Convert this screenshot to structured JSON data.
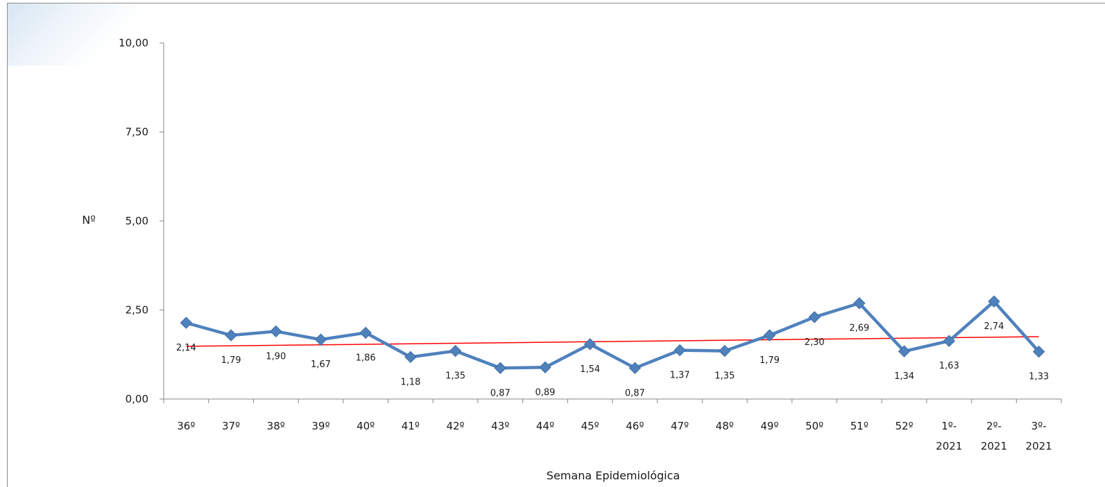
{
  "chart_data": {
    "type": "line",
    "title": "",
    "xlabel": "Semana Epidemiológica",
    "ylabel": "Nº",
    "ylim": [
      0,
      10
    ],
    "y_ticks": [
      "0,00",
      "2,50",
      "5,00",
      "7,50",
      "10,00"
    ],
    "y_tick_values": [
      0,
      2.5,
      5,
      7.5,
      10
    ],
    "grid": false,
    "categories": [
      [
        "36º"
      ],
      [
        "37º"
      ],
      [
        "38º"
      ],
      [
        "39º"
      ],
      [
        "40º"
      ],
      [
        "41º"
      ],
      [
        "42º"
      ],
      [
        "43º"
      ],
      [
        "44º"
      ],
      [
        "45º"
      ],
      [
        "46º"
      ],
      [
        "47º"
      ],
      [
        "48º"
      ],
      [
        "49º"
      ],
      [
        "50º"
      ],
      [
        "51º"
      ],
      [
        "52º"
      ],
      [
        "1º-",
        "2021"
      ],
      [
        "2º-",
        "2021"
      ],
      [
        "3º-",
        "2021"
      ]
    ],
    "series": [
      {
        "values": [
          2.14,
          1.79,
          1.9,
          1.67,
          1.86,
          1.18,
          1.35,
          0.87,
          0.89,
          1.54,
          0.87,
          1.37,
          1.35,
          1.79,
          2.3,
          2.69,
          1.34,
          1.63,
          2.74,
          1.33
        ],
        "labels": [
          "2,14",
          "1,79",
          "1,90",
          "1,67",
          "1,86",
          "1,18",
          "1,35",
          "0,87",
          "0,89",
          "1,54",
          "0,87",
          "1,37",
          "1,35",
          "1,79",
          "2,30",
          "2,69",
          "1,34",
          "1,63",
          "2,74",
          "1,33"
        ],
        "color": "#4f81bd"
      }
    ],
    "trendline": {
      "start": 1.48,
      "end": 1.75,
      "color": "#ff0000"
    }
  }
}
